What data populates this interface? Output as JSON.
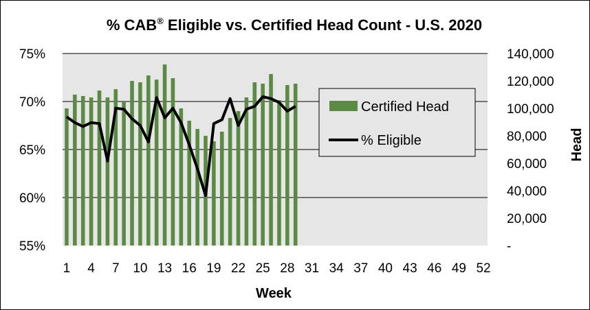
{
  "chart_data": {
    "type": "bar+line",
    "title": "% CAB",
    "title_reg": "®",
    "title_rest": " Eligible vs. Certified Head Count - U.S. 2020",
    "xlabel": "Week",
    "ylabel_left": "",
    "ylabel_right": "Head",
    "x_ticks": [
      "1",
      "4",
      "7",
      "10",
      "13",
      "16",
      "19",
      "22",
      "25",
      "28",
      "31",
      "34",
      "37",
      "40",
      "43",
      "46",
      "49",
      "52"
    ],
    "x_range": [
      1,
      52
    ],
    "y_left_ticks": [
      "55%",
      "60%",
      "65%",
      "70%",
      "75%"
    ],
    "y_left_range": [
      55,
      75
    ],
    "y_right_ticks": [
      "-",
      "20,000",
      "40,000",
      "60,000",
      "80,000",
      "100,000",
      "120,000",
      "140,000"
    ],
    "y_right_range": [
      0,
      140000
    ],
    "grid": "horizontal",
    "legend_position": "right",
    "series": [
      {
        "name": "Certified Head",
        "type": "bar",
        "axis": "right",
        "color": "#5B8A44",
        "x": [
          1,
          2,
          3,
          4,
          5,
          6,
          7,
          8,
          9,
          10,
          11,
          12,
          13,
          14,
          15,
          16,
          17,
          18,
          19,
          20,
          21,
          22,
          23,
          24,
          25,
          26,
          27,
          28,
          29
        ],
        "values": [
          100000,
          110000,
          109000,
          108000,
          113000,
          108000,
          114000,
          105000,
          120000,
          119000,
          124000,
          121000,
          132000,
          122000,
          100000,
          91000,
          85000,
          80000,
          76000,
          83000,
          93000,
          98000,
          108000,
          119000,
          118000,
          125000,
          106000,
          117000,
          118000
        ]
      },
      {
        "name": "% Eligible",
        "type": "line",
        "axis": "left",
        "color": "#000000",
        "x": [
          1,
          2,
          3,
          4,
          5,
          6,
          7,
          8,
          9,
          10,
          11,
          12,
          13,
          14,
          15,
          16,
          17,
          18,
          19,
          20,
          21,
          22,
          23,
          24,
          25,
          26,
          27,
          28,
          29
        ],
        "values": [
          68.4,
          67.8,
          67.4,
          67.8,
          67.7,
          63.8,
          69.3,
          69.2,
          68.2,
          67.5,
          65.8,
          70.4,
          68.3,
          69.3,
          67.8,
          65.5,
          63.0,
          60.2,
          67.7,
          68.1,
          70.3,
          67.5,
          69.2,
          69.5,
          70.5,
          70.3,
          69.9,
          69.0,
          69.5
        ]
      }
    ]
  }
}
